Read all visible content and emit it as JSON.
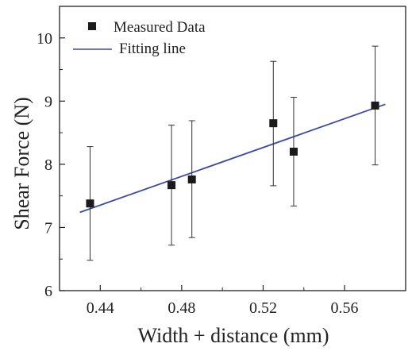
{
  "chart_data": {
    "type": "scatter",
    "title": "",
    "xlabel": "Width + distance (mm)",
    "ylabel": "Shear Force (N)",
    "xlim": [
      0.42,
      0.59
    ],
    "ylim": [
      6,
      10.5
    ],
    "x_ticks": [
      0.44,
      0.48,
      0.52,
      0.56
    ],
    "x_tick_labels": [
      "0.44",
      "0.48",
      "0.52",
      "0.56"
    ],
    "y_ticks": [
      6,
      7,
      8,
      9,
      10
    ],
    "y_tick_labels": [
      "6",
      "7",
      "8",
      "9",
      "10"
    ],
    "grid": false,
    "legend_position": "top-left",
    "series": [
      {
        "name": "Measured Data",
        "type": "scatter",
        "marker": "square",
        "color": "#1a1a1a",
        "points": [
          {
            "x": 0.435,
            "y": 7.38,
            "err_low": 6.48,
            "err_high": 8.28
          },
          {
            "x": 0.475,
            "y": 7.67,
            "err_low": 6.72,
            "err_high": 8.62
          },
          {
            "x": 0.485,
            "y": 7.76,
            "err_low": 6.84,
            "err_high": 8.69
          },
          {
            "x": 0.525,
            "y": 8.65,
            "err_low": 7.66,
            "err_high": 9.63
          },
          {
            "x": 0.535,
            "y": 8.2,
            "err_low": 7.34,
            "err_high": 9.06
          },
          {
            "x": 0.575,
            "y": 8.93,
            "err_low": 7.99,
            "err_high": 9.87
          }
        ]
      },
      {
        "name": "Fitting line",
        "type": "line",
        "color": "#3b4aa8",
        "x": [
          0.43,
          0.58
        ],
        "y": [
          7.24,
          8.95
        ]
      }
    ]
  }
}
